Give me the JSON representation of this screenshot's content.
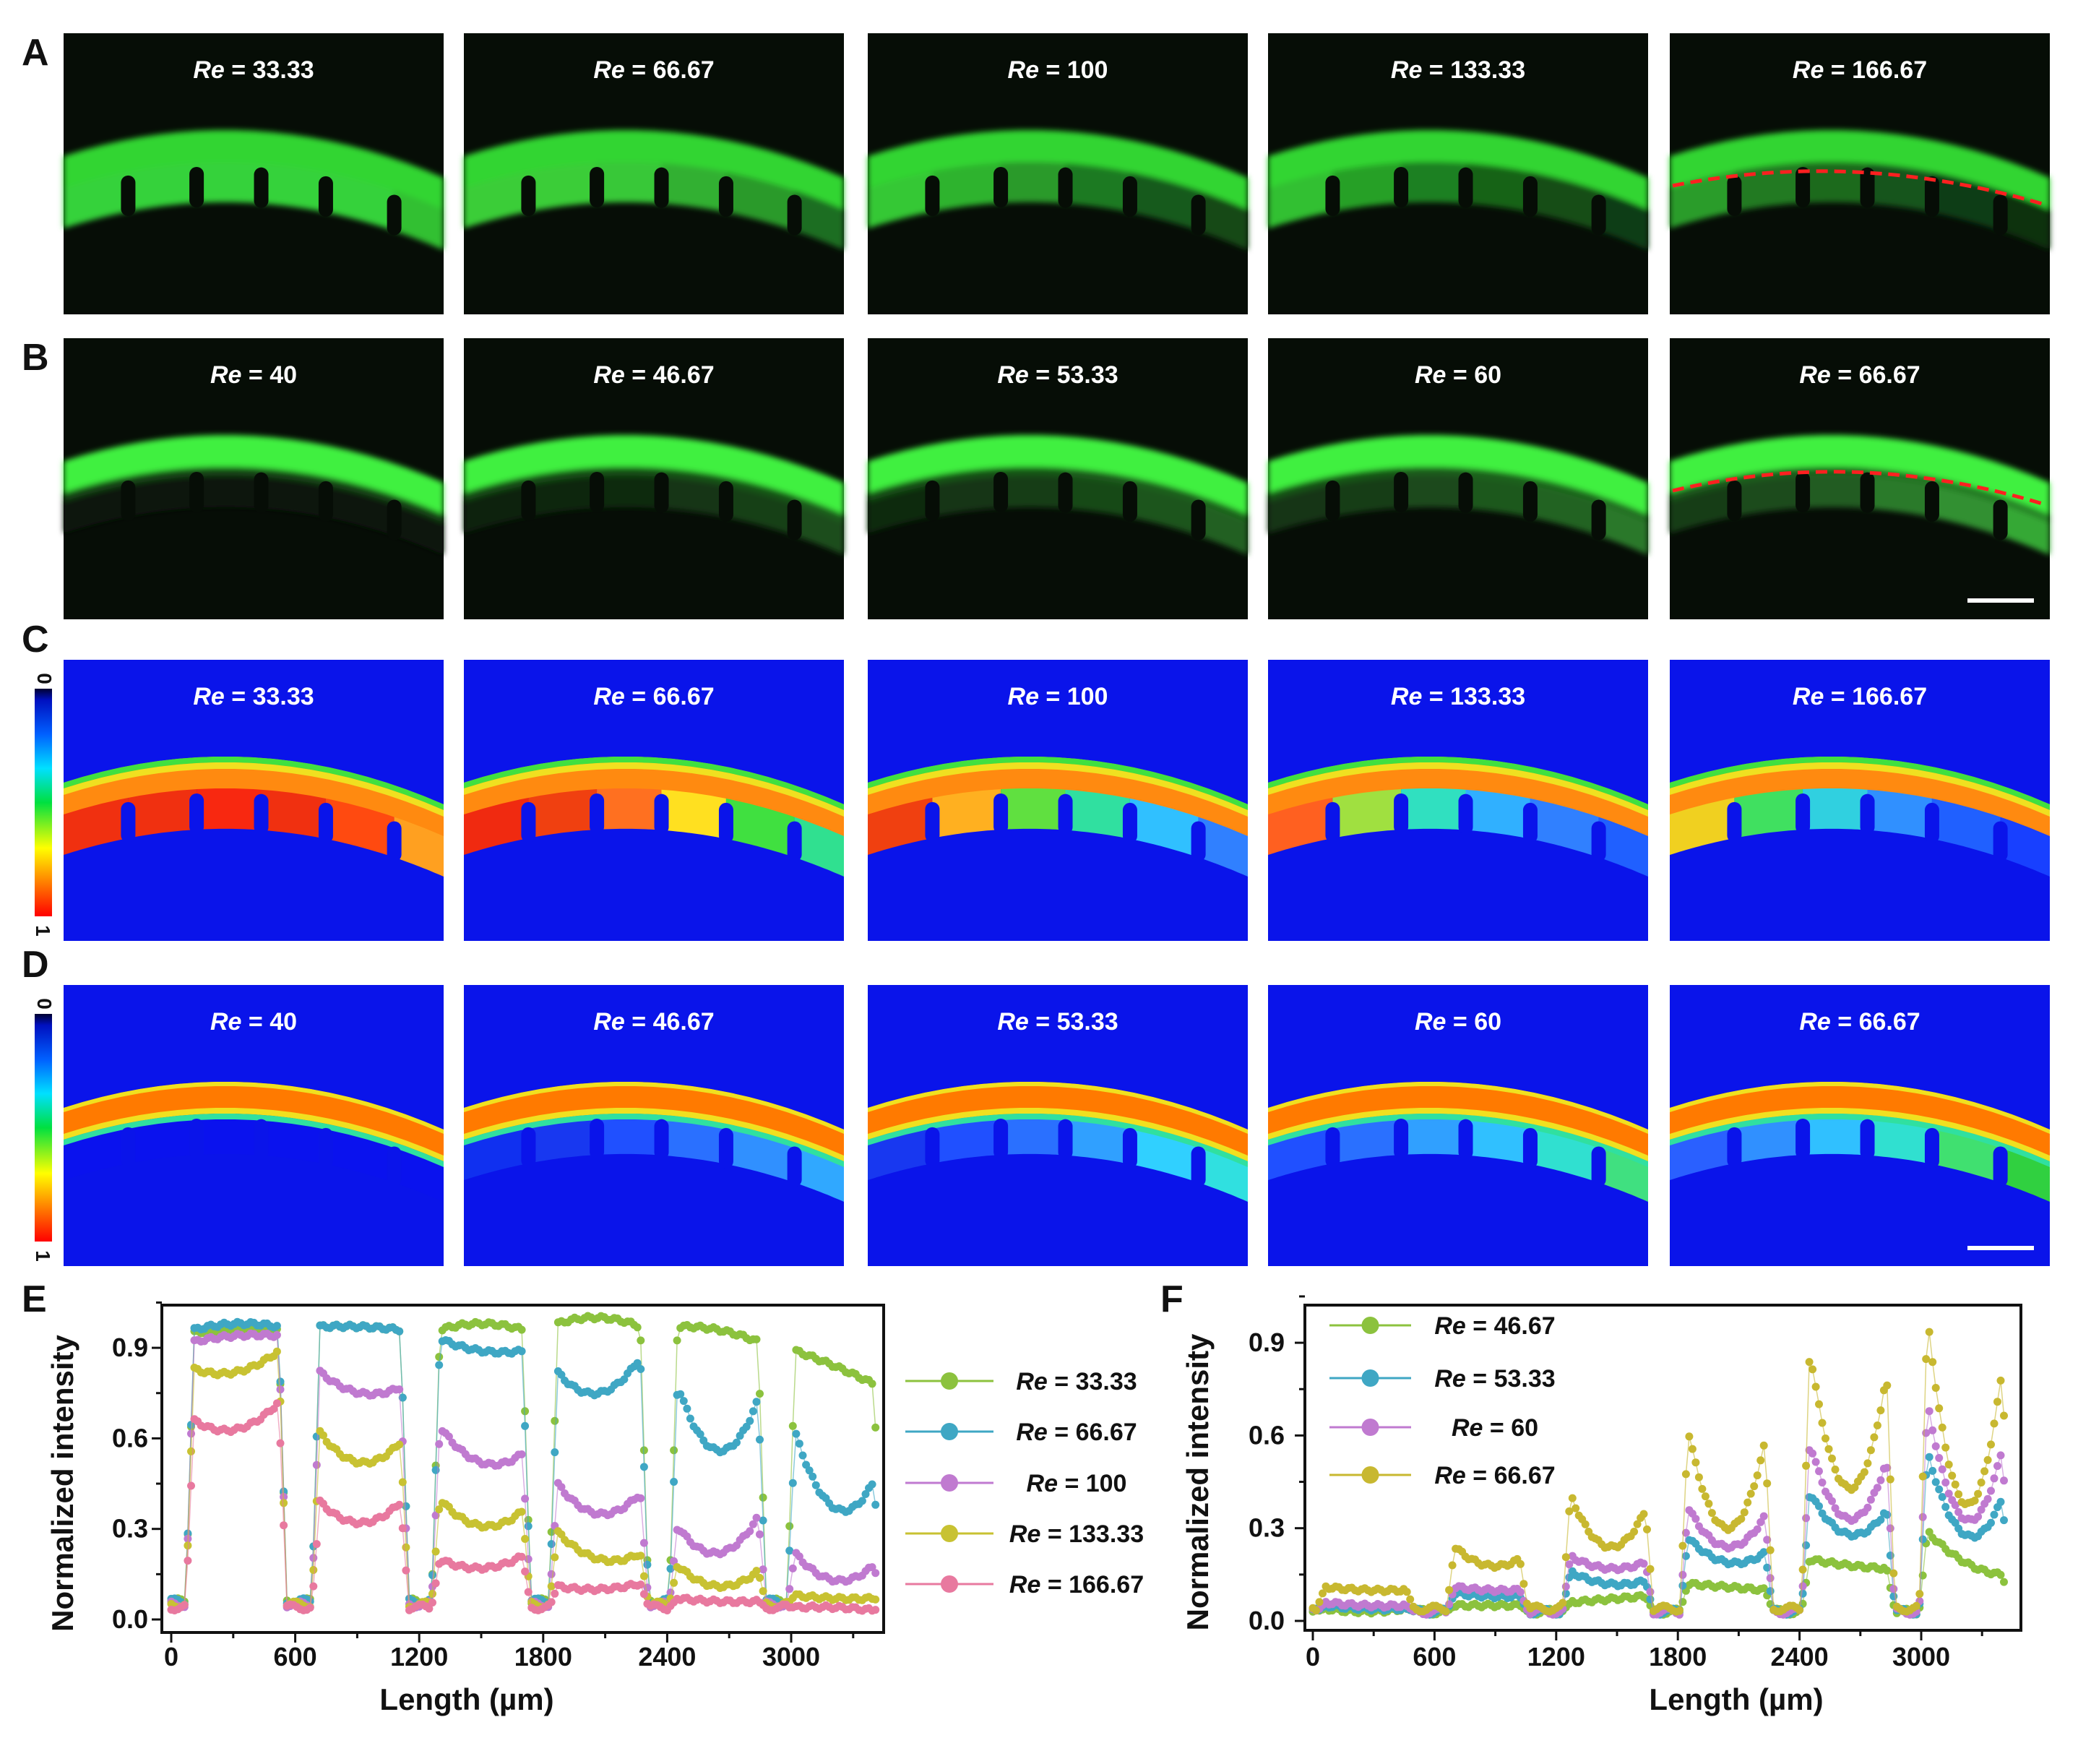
{
  "re_symbol": "Re",
  "colorbar": {
    "min": "0",
    "max": "1"
  },
  "panels": {
    "A": {
      "letter": "A",
      "items": [
        {
          "re": "33.33",
          "chambers": [
            "#36d23a",
            "#36d23a",
            "#36d23a",
            "#36d23a",
            "#36d23a",
            "#30c030"
          ]
        },
        {
          "re": "66.67",
          "chambers": [
            "#3acd38",
            "#3acd38",
            "#38c838",
            "#32b032",
            "#2a9a2a",
            "#1e6e20"
          ]
        },
        {
          "re": "100",
          "chambers": [
            "#34c834",
            "#2fb32f",
            "#2a9a2a",
            "#1f7a22",
            "#185a1a",
            "#144a16"
          ]
        },
        {
          "re": "133.33",
          "chambers": [
            "#32c032",
            "#28a028",
            "#1f8020",
            "#186418",
            "#134e15",
            "#0f3e12"
          ]
        },
        {
          "re": "166.67",
          "chambers": [
            "#2a9c2c",
            "#207a22",
            "#1a6a1c",
            "#16541a",
            "#113e14",
            "#0e3010"
          ]
        }
      ]
    },
    "B": {
      "letter": "B",
      "items": [
        {
          "re": "40",
          "chambers": [
            "#071207",
            "#071207",
            "#071207",
            "#071207",
            "#071207",
            "#071207"
          ]
        },
        {
          "re": "46.67",
          "chambers": [
            "#0c220c",
            "#0e280e",
            "#0f2c0f",
            "#123612",
            "#154015",
            "#1a4e1a"
          ]
        },
        {
          "re": "53.33",
          "chambers": [
            "#0f2c0f",
            "#123412",
            "#153e15",
            "#184818",
            "#1c541c",
            "#206020"
          ]
        },
        {
          "re": "60",
          "chambers": [
            "#123412",
            "#163e16",
            "#1a4a1a",
            "#1e581e",
            "#236423",
            "#2a782a"
          ]
        },
        {
          "re": "66.67",
          "chambers": [
            "#173e17",
            "#1c4c1c",
            "#225c22",
            "#2a7a2a",
            "#309030",
            "#36a836"
          ]
        }
      ]
    },
    "C": {
      "letter": "C",
      "items": [
        {
          "re": "33.33",
          "chambers": [
            "#f03010",
            "#f03010",
            "#f82810",
            "#f03010",
            "#ff4a10",
            "#ffa020"
          ]
        },
        {
          "re": "66.67",
          "chambers": [
            "#f02a10",
            "#f04010",
            "#ff7020",
            "#ffe020",
            "#40e040",
            "#30e090"
          ]
        },
        {
          "re": "100",
          "chambers": [
            "#f04010",
            "#ffb020",
            "#60e040",
            "#30e0a0",
            "#30c0ff",
            "#3080ff"
          ]
        },
        {
          "re": "133.33",
          "chambers": [
            "#ff6020",
            "#a0e040",
            "#30e0c0",
            "#30b0ff",
            "#3080ff",
            "#2060ff"
          ]
        },
        {
          "re": "166.67",
          "chambers": [
            "#f0d020",
            "#40e060",
            "#30d0e0",
            "#3090ff",
            "#2060ff",
            "#1840ff"
          ]
        }
      ]
    },
    "D": {
      "letter": "D",
      "items": [
        {
          "re": "40",
          "chambers": [
            "#0a12ee",
            "#0a12ee",
            "#0a12ee",
            "#0a12ee",
            "#0a12ee",
            "#0a12ee"
          ]
        },
        {
          "re": "46.67",
          "chambers": [
            "#1030f0",
            "#1838f0",
            "#2050ff",
            "#2a70ff",
            "#3090ff",
            "#30a8ff"
          ]
        },
        {
          "re": "53.33",
          "chambers": [
            "#1838f0",
            "#2050ff",
            "#2a70ff",
            "#30a0ff",
            "#30d0ff",
            "#30e0e0"
          ]
        },
        {
          "re": "60",
          "chambers": [
            "#2050ff",
            "#2a70ff",
            "#30a0ff",
            "#30c0ff",
            "#30e0d0",
            "#40e080"
          ]
        },
        {
          "re": "66.67",
          "chambers": [
            "#2a60ff",
            "#3090ff",
            "#30c0ff",
            "#30e0d0",
            "#40e070",
            "#30d040"
          ]
        }
      ]
    }
  },
  "chart_data": [
    {
      "panel": "E",
      "type": "scatter",
      "title": "",
      "xlabel": "Length (µm)",
      "ylabel": "Normalized intensity",
      "xlim": [
        0,
        3450
      ],
      "ylim": [
        0,
        1.02
      ],
      "xticks": [
        "0",
        "600",
        "1200",
        "1800",
        "2400",
        "3000"
      ],
      "yticks": [
        "0.0",
        "0.3",
        "0.6",
        "0.9"
      ],
      "legend_position": "right-outside",
      "segments_um": [
        [
          110,
          520
        ],
        [
          720,
          1110
        ],
        [
          1300,
          1700
        ],
        [
          1870,
          2270
        ],
        [
          2450,
          2840
        ],
        [
          3020,
          3400
        ]
      ],
      "series": [
        {
          "name": "= 33.33",
          "color": "#8cc23e",
          "baseline": 0.06,
          "levels": [
            [
              0.95,
              0.96,
              0.96
            ],
            [
              0.97,
              0.97,
              0.96
            ],
            [
              0.96,
              0.98,
              0.96
            ],
            [
              0.98,
              1.0,
              0.97
            ],
            [
              0.97,
              0.96,
              0.92
            ],
            [
              0.89,
              0.84,
              0.78
            ]
          ]
        },
        {
          "name": "= 66.67",
          "color": "#3fa7c4",
          "baseline": 0.06,
          "levels": [
            [
              0.96,
              0.98,
              0.97
            ],
            [
              0.97,
              0.97,
              0.96
            ],
            [
              0.93,
              0.89,
              0.89
            ],
            [
              0.82,
              0.75,
              0.87
            ],
            [
              0.78,
              0.56,
              0.73
            ],
            [
              0.62,
              0.37,
              0.46
            ]
          ]
        },
        {
          "name": "= 100",
          "color": "#c07ad0",
          "baseline": 0.05,
          "levels": [
            [
              0.92,
              0.94,
              0.94
            ],
            [
              0.82,
              0.75,
              0.77
            ],
            [
              0.64,
              0.52,
              0.55
            ],
            [
              0.45,
              0.35,
              0.42
            ],
            [
              0.31,
              0.22,
              0.34
            ],
            [
              0.22,
              0.13,
              0.18
            ]
          ]
        },
        {
          "name": "= 133.33",
          "color": "#c8c232",
          "baseline": 0.05,
          "levels": [
            [
              0.83,
              0.82,
              0.89
            ],
            [
              0.62,
              0.52,
              0.59
            ],
            [
              0.4,
              0.31,
              0.36
            ],
            [
              0.29,
              0.2,
              0.22
            ],
            [
              0.18,
              0.11,
              0.16
            ],
            [
              0.08,
              0.07,
              0.07
            ]
          ]
        },
        {
          "name": "= 166.67",
          "color": "#e8799f",
          "baseline": 0.04,
          "levels": [
            [
              0.66,
              0.63,
              0.72
            ],
            [
              0.39,
              0.32,
              0.39
            ],
            [
              0.2,
              0.17,
              0.21
            ],
            [
              0.11,
              0.1,
              0.12
            ],
            [
              0.07,
              0.06,
              0.06
            ],
            [
              0.04,
              0.04,
              0.03
            ]
          ]
        }
      ]
    },
    {
      "panel": "F",
      "type": "scatter",
      "title": "",
      "xlabel": "Length (µm)",
      "ylabel": "Normalized intensity",
      "xlim": [
        0,
        3450
      ],
      "ylim": [
        0,
        1.02
      ],
      "xticks": [
        "0",
        "600",
        "1200",
        "1800",
        "2400",
        "3000"
      ],
      "yticks": [
        "0.0",
        "0.3",
        "0.6",
        "0.9"
      ],
      "legend_position": "top-left",
      "segments_um": [
        [
          60,
          460
        ],
        [
          700,
          1020
        ],
        [
          1270,
          1640
        ],
        [
          1850,
          2230
        ],
        [
          2450,
          2830
        ],
        [
          3030,
          3400
        ]
      ],
      "series": [
        {
          "name": "= 46.67",
          "color": "#8cc23e",
          "baseline": 0.03,
          "levels": [
            [
              0.04,
              0.03,
              0.04
            ],
            [
              0.05,
              0.05,
              0.05
            ],
            [
              0.06,
              0.07,
              0.08
            ],
            [
              0.12,
              0.11,
              0.1
            ],
            [
              0.2,
              0.18,
              0.17
            ],
            [
              0.29,
              0.19,
              0.15
            ]
          ]
        },
        {
          "name": "= 53.33",
          "color": "#3fa7c4",
          "baseline": 0.03,
          "levels": [
            [
              0.05,
              0.04,
              0.04
            ],
            [
              0.09,
              0.08,
              0.08
            ],
            [
              0.16,
              0.12,
              0.13
            ],
            [
              0.27,
              0.19,
              0.22
            ],
            [
              0.42,
              0.28,
              0.36
            ],
            [
              0.55,
              0.28,
              0.4
            ]
          ]
        },
        {
          "name": "= 60",
          "color": "#c07ad0",
          "baseline": 0.03,
          "levels": [
            [
              0.06,
              0.05,
              0.05
            ],
            [
              0.11,
              0.1,
              0.1
            ],
            [
              0.21,
              0.17,
              0.19
            ],
            [
              0.37,
              0.24,
              0.34
            ],
            [
              0.58,
              0.33,
              0.52
            ],
            [
              0.71,
              0.33,
              0.56
            ]
          ]
        },
        {
          "name": "= 66.67",
          "color": "#c8b830",
          "baseline": 0.04,
          "levels": [
            [
              0.11,
              0.1,
              0.1
            ],
            [
              0.24,
              0.18,
              0.2
            ],
            [
              0.41,
              0.24,
              0.36
            ],
            [
              0.62,
              0.3,
              0.58
            ],
            [
              0.88,
              0.43,
              0.8
            ],
            [
              0.99,
              0.38,
              0.82
            ]
          ]
        }
      ]
    }
  ]
}
